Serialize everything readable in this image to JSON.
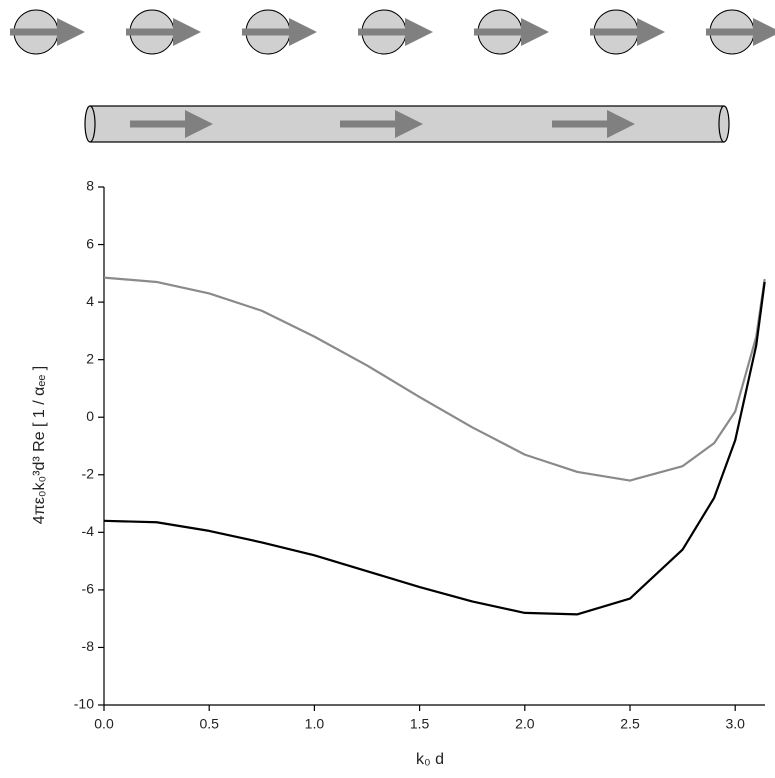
{
  "chart_data": {
    "type": "line",
    "x_label": "k₀ d",
    "y_label": "4πε₀k₀³d³ Re [ 1 / αₑₑ ]",
    "x": [
      0,
      0.25,
      0.5,
      0.75,
      1.0,
      1.25,
      1.5,
      1.75,
      2.0,
      2.25,
      2.5,
      2.75,
      2.9,
      3.0,
      3.1,
      3.14
    ],
    "series": [
      {
        "color": "#8a8a8a",
        "values": [
          4.85,
          4.7,
          4.3,
          3.7,
          2.8,
          1.8,
          0.7,
          -0.35,
          -1.3,
          -1.9,
          -2.2,
          -1.7,
          -0.9,
          0.2,
          2.8,
          4.8
        ]
      },
      {
        "color": "#000000",
        "values": [
          -3.6,
          -3.65,
          -3.95,
          -4.35,
          -4.8,
          -5.35,
          -5.9,
          -6.4,
          -6.8,
          -6.85,
          -6.3,
          -4.6,
          -2.8,
          -0.8,
          2.5,
          4.7
        ]
      }
    ],
    "xlim": [
      0,
      3.1416
    ],
    "ylim": [
      -10,
      8
    ],
    "xticks": [
      {
        "value": 0,
        "label": "0.0"
      },
      0.5,
      {
        "value": 1,
        "label": "1.0"
      },
      1.5,
      {
        "value": 2,
        "label": "2.0"
      },
      2.5,
      {
        "value": 3,
        "label": "3.0"
      }
    ],
    "yticks": [
      -10,
      -8,
      -6,
      -4,
      -2,
      0,
      2,
      4,
      6,
      8
    ]
  }
}
